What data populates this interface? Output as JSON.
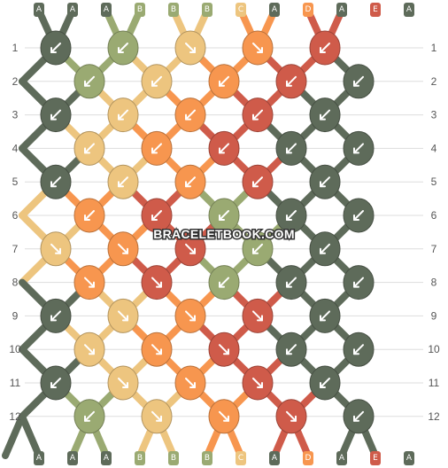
{
  "site": {
    "watermark": "BRACELETBOOK.COM"
  },
  "colors": {
    "A": "#5e6b5a",
    "B": "#9aaa72",
    "C": "#edc57f",
    "D": "#f7964f",
    "E": "#cf5b4a",
    "gridline": "#dddddd",
    "label_bg": "#d7d7d7"
  },
  "strings_top": [
    "A",
    "A",
    "A",
    "B",
    "B",
    "B",
    "C",
    "A",
    "D",
    "A",
    "E",
    "A"
  ],
  "strings_bottom": [
    "A",
    "A",
    "A",
    "B",
    "B",
    "B",
    "C",
    "A",
    "D",
    "A",
    "E",
    "A"
  ],
  "row_labels": [
    "1",
    "2",
    "3",
    "4",
    "5",
    "6",
    "7",
    "8",
    "9",
    "10",
    "11",
    "12"
  ],
  "knot_icons": {
    "sw": "arrow-down-left",
    "se": "arrow-down-right"
  },
  "knots": [
    [
      {
        "c": "A",
        "d": "sw"
      },
      {
        "c": "B",
        "d": "sw"
      },
      {
        "c": "C",
        "d": "se"
      },
      {
        "c": "D",
        "d": "se"
      },
      {
        "c": "E",
        "d": "sw"
      }
    ],
    [
      {
        "c": "A",
        "d": "sw"
      },
      {
        "c": "B",
        "d": "sw"
      },
      {
        "c": "C",
        "d": "sw"
      },
      {
        "c": "D",
        "d": "sw"
      },
      {
        "c": "E",
        "d": "sw"
      },
      {
        "c": "A",
        "d": "sw"
      }
    ],
    [
      {
        "c": "A",
        "d": "sw"
      },
      {
        "c": "C",
        "d": "sw"
      },
      {
        "c": "D",
        "d": "sw"
      },
      {
        "c": "E",
        "d": "sw"
      },
      {
        "c": "A",
        "d": "sw"
      }
    ],
    [
      {
        "c": "A",
        "d": "sw"
      },
      {
        "c": "C",
        "d": "sw"
      },
      {
        "c": "D",
        "d": "sw"
      },
      {
        "c": "E",
        "d": "sw"
      },
      {
        "c": "A",
        "d": "sw"
      },
      {
        "c": "A",
        "d": "sw"
      }
    ],
    [
      {
        "c": "A",
        "d": "sw"
      },
      {
        "c": "C",
        "d": "sw"
      },
      {
        "c": "D",
        "d": "sw"
      },
      {
        "c": "E",
        "d": "sw"
      },
      {
        "c": "A",
        "d": "sw"
      }
    ],
    [
      {
        "c": "C",
        "d": "sw"
      },
      {
        "c": "D",
        "d": "sw"
      },
      {
        "c": "E",
        "d": "sw"
      },
      {
        "c": "B",
        "d": "sw"
      },
      {
        "c": "A",
        "d": "sw"
      },
      {
        "c": "A",
        "d": "sw"
      }
    ],
    [
      {
        "c": "C",
        "d": "se"
      },
      {
        "c": "D",
        "d": "se"
      },
      {
        "c": "E",
        "d": "se"
      },
      {
        "c": "B",
        "d": "sw"
      },
      {
        "c": "A",
        "d": "sw"
      }
    ],
    [
      {
        "c": "C",
        "d": "se"
      },
      {
        "c": "D",
        "d": "se"
      },
      {
        "c": "E",
        "d": "se"
      },
      {
        "c": "B",
        "d": "sw"
      },
      {
        "c": "A",
        "d": "sw"
      },
      {
        "c": "A",
        "d": "sw"
      }
    ],
    [
      {
        "c": "A",
        "d": "sw"
      },
      {
        "c": "C",
        "d": "se"
      },
      {
        "c": "D",
        "d": "se"
      },
      {
        "c": "E",
        "d": "se"
      },
      {
        "c": "A",
        "d": "sw"
      }
    ],
    [
      {
        "c": "A",
        "d": "sw"
      },
      {
        "c": "C",
        "d": "se"
      },
      {
        "c": "D",
        "d": "se"
      },
      {
        "c": "E",
        "d": "se"
      },
      {
        "c": "A",
        "d": "sw"
      },
      {
        "c": "A",
        "d": "sw"
      }
    ],
    [
      {
        "c": "A",
        "d": "sw"
      },
      {
        "c": "C",
        "d": "se"
      },
      {
        "c": "D",
        "d": "se"
      },
      {
        "c": "E",
        "d": "se"
      },
      {
        "c": "A",
        "d": "sw"
      }
    ],
    [
      {
        "c": "A",
        "d": "sw"
      },
      {
        "c": "B",
        "d": "sw"
      },
      {
        "c": "C",
        "d": "se"
      },
      {
        "c": "D",
        "d": "se"
      },
      {
        "c": "E",
        "d": "se"
      },
      {
        "c": "A",
        "d": "sw"
      }
    ]
  ]
}
